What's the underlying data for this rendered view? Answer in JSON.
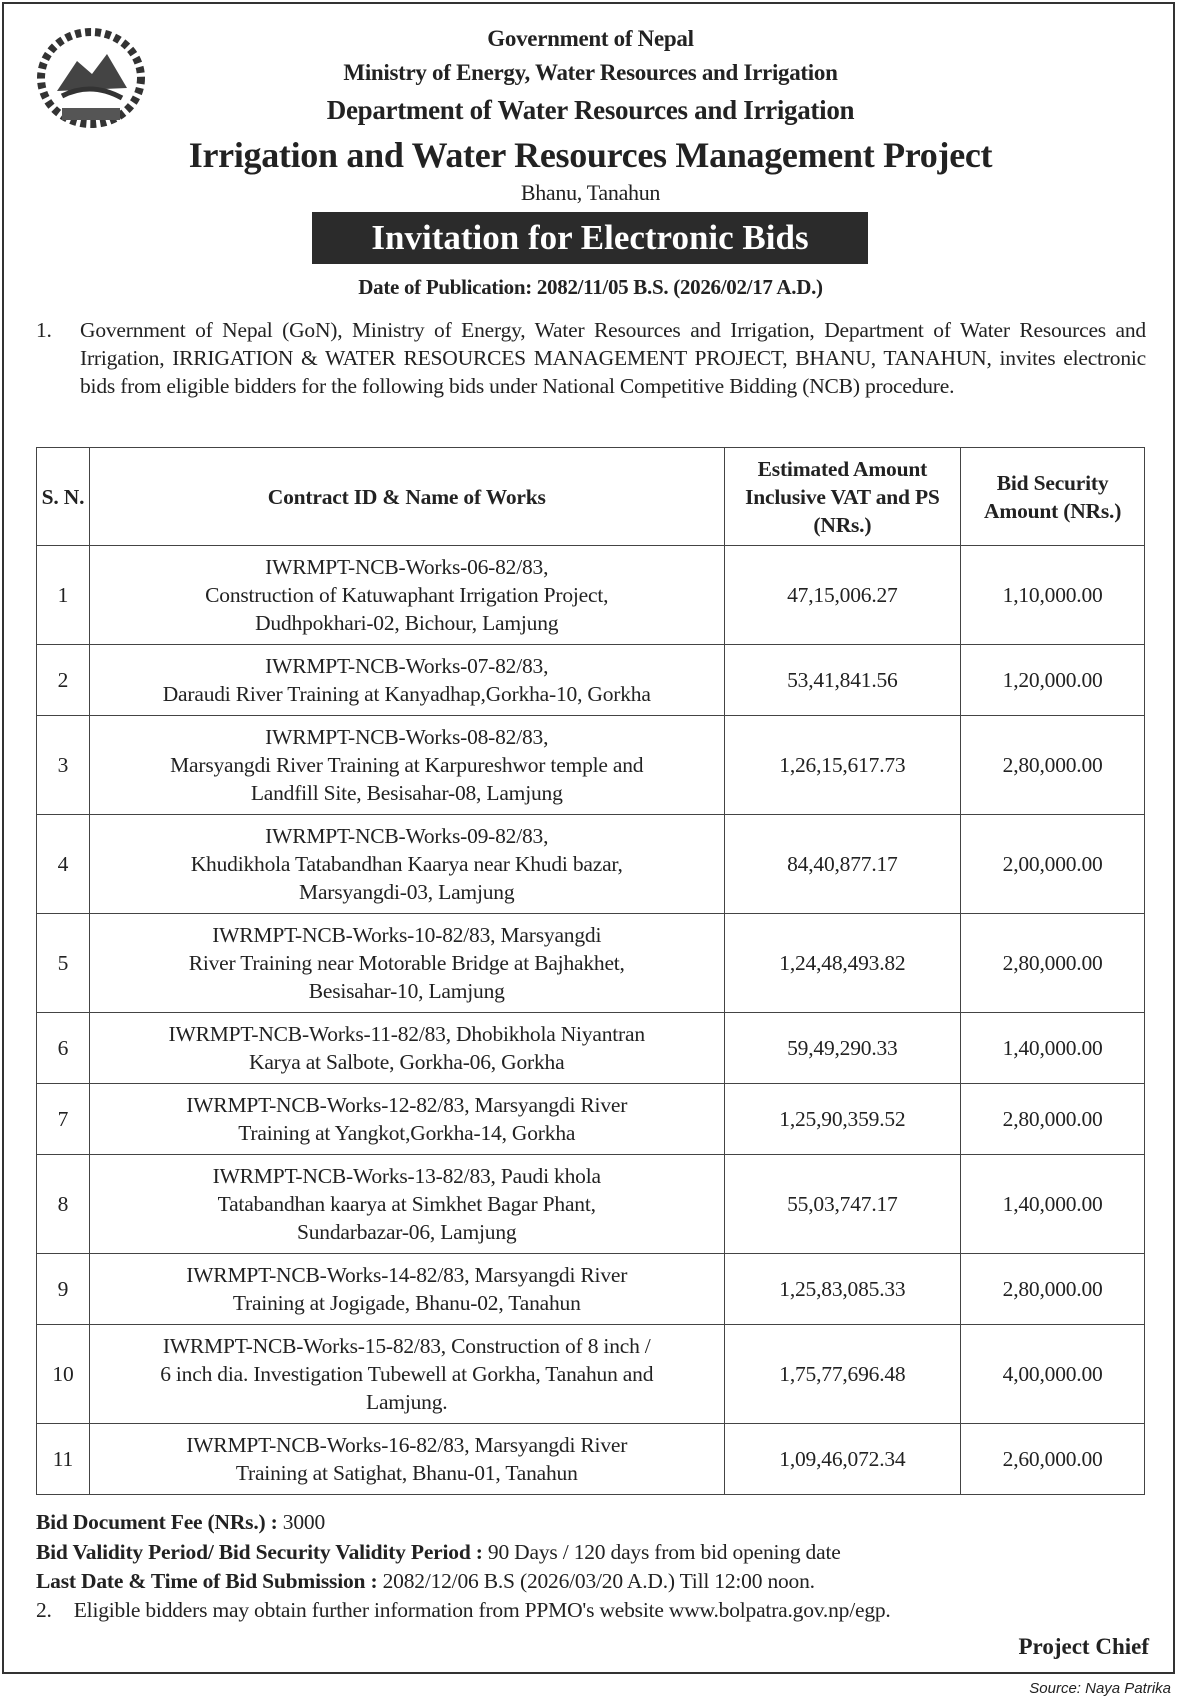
{
  "header": {
    "government": "Government of Nepal",
    "ministry": "Ministry of Energy, Water Resources and Irrigation",
    "department": "Department of Water Resources and Irrigation",
    "project": "Irrigation and Water Resources Management Project",
    "location": "Bhanu, Tanahun",
    "title": "Invitation for Electronic Bids",
    "publication_date": "Date of Publication: 2082/11/05 B.S. (2026/02/17 A.D.)"
  },
  "intro": {
    "number": "1.",
    "text": "Government of Nepal (GoN), Ministry of Energy, Water Resources and Irrigation, Department of Water Resources and Irrigation, IRRIGATION & WATER RESOURCES MANAGEMENT PROJECT, BHANU, TANAHUN, invites electronic bids from eligible bidders for the following bids under National Competitive Bidding (NCB) procedure."
  },
  "table": {
    "headers": [
      "S. N.",
      "Contract ID & Name of Works",
      "Estimated Amount Inclusive VAT and PS (NRs.)",
      "Bid Security Amount (NRs.)"
    ],
    "rows": [
      {
        "sn": "1",
        "work": "IWRMPT-NCB-Works-06-82/83,\nConstruction of Katuwaphant Irrigation Project,\nDudhpokhari-02, Bichour, Lamjung",
        "estimate": "47,15,006.27",
        "security": "1,10,000.00"
      },
      {
        "sn": "2",
        "work": "IWRMPT-NCB-Works-07-82/83,\nDaraudi River Training at Kanyadhap,Gorkha-10, Gorkha",
        "estimate": "53,41,841.56",
        "security": "1,20,000.00"
      },
      {
        "sn": "3",
        "work": "IWRMPT-NCB-Works-08-82/83,\nMarsyangdi River Training at Karpureshwor temple and\nLandfill Site, Besisahar-08, Lamjung",
        "estimate": "1,26,15,617.73",
        "security": "2,80,000.00"
      },
      {
        "sn": "4",
        "work": "IWRMPT-NCB-Works-09-82/83,\nKhudikhola Tatabandhan Kaarya near Khudi bazar,\nMarsyangdi-03, Lamjung",
        "estimate": "84,40,877.17",
        "security": "2,00,000.00"
      },
      {
        "sn": "5",
        "work": "IWRMPT-NCB-Works-10-82/83, Marsyangdi\nRiver Training near Motorable Bridge at Bajhakhet,\nBesisahar-10, Lamjung",
        "estimate": "1,24,48,493.82",
        "security": "2,80,000.00"
      },
      {
        "sn": "6",
        "work": "IWRMPT-NCB-Works-11-82/83, Dhobikhola Niyantran\nKarya at Salbote, Gorkha-06, Gorkha",
        "estimate": "59,49,290.33",
        "security": "1,40,000.00"
      },
      {
        "sn": "7",
        "work": "IWRMPT-NCB-Works-12-82/83, Marsyangdi River\nTraining at Yangkot,Gorkha-14, Gorkha",
        "estimate": "1,25,90,359.52",
        "security": "2,80,000.00"
      },
      {
        "sn": "8",
        "work": "IWRMPT-NCB-Works-13-82/83, Paudi khola\nTatabandhan kaarya at Simkhet Bagar Phant,\nSundarbazar-06, Lamjung",
        "estimate": "55,03,747.17",
        "security": "1,40,000.00"
      },
      {
        "sn": "9",
        "work": "IWRMPT-NCB-Works-14-82/83, Marsyangdi River\nTraining at Jogigade, Bhanu-02, Tanahun",
        "estimate": "1,25,83,085.33",
        "security": "2,80,000.00"
      },
      {
        "sn": "10",
        "work": "IWRMPT-NCB-Works-15-82/83, Construction of 8 inch /\n6 inch dia. Investigation Tubewell at Gorkha, Tanahun and\nLamjung.",
        "estimate": "1,75,77,696.48",
        "security": "4,00,000.00"
      },
      {
        "sn": "11",
        "work": "IWRMPT-NCB-Works-16-82/83, Marsyangdi River\nTraining at Satighat, Bhanu-01, Tanahun",
        "estimate": "1,09,46,072.34",
        "security": "2,60,000.00"
      }
    ]
  },
  "footer": {
    "fee_label": "Bid Document Fee (NRs.) :",
    "fee_value": " 3000",
    "validity_label": "Bid Validity Period/ Bid Security Validity Period :",
    "validity_value": " 90 Days / 120 days from bid opening date",
    "deadline_label": "Last Date & Time of Bid Submission :",
    "deadline_value": " 2082/12/06 B.S (2026/03/20 A.D.) Till 12:00 noon.",
    "note_number": "2.",
    "note_text": "Eligible bidders may obtain further information from PPMO's website www.bolpatra.gov.np/egp.",
    "signatory": "Project Chief"
  },
  "source": "Source: Naya Patrika"
}
